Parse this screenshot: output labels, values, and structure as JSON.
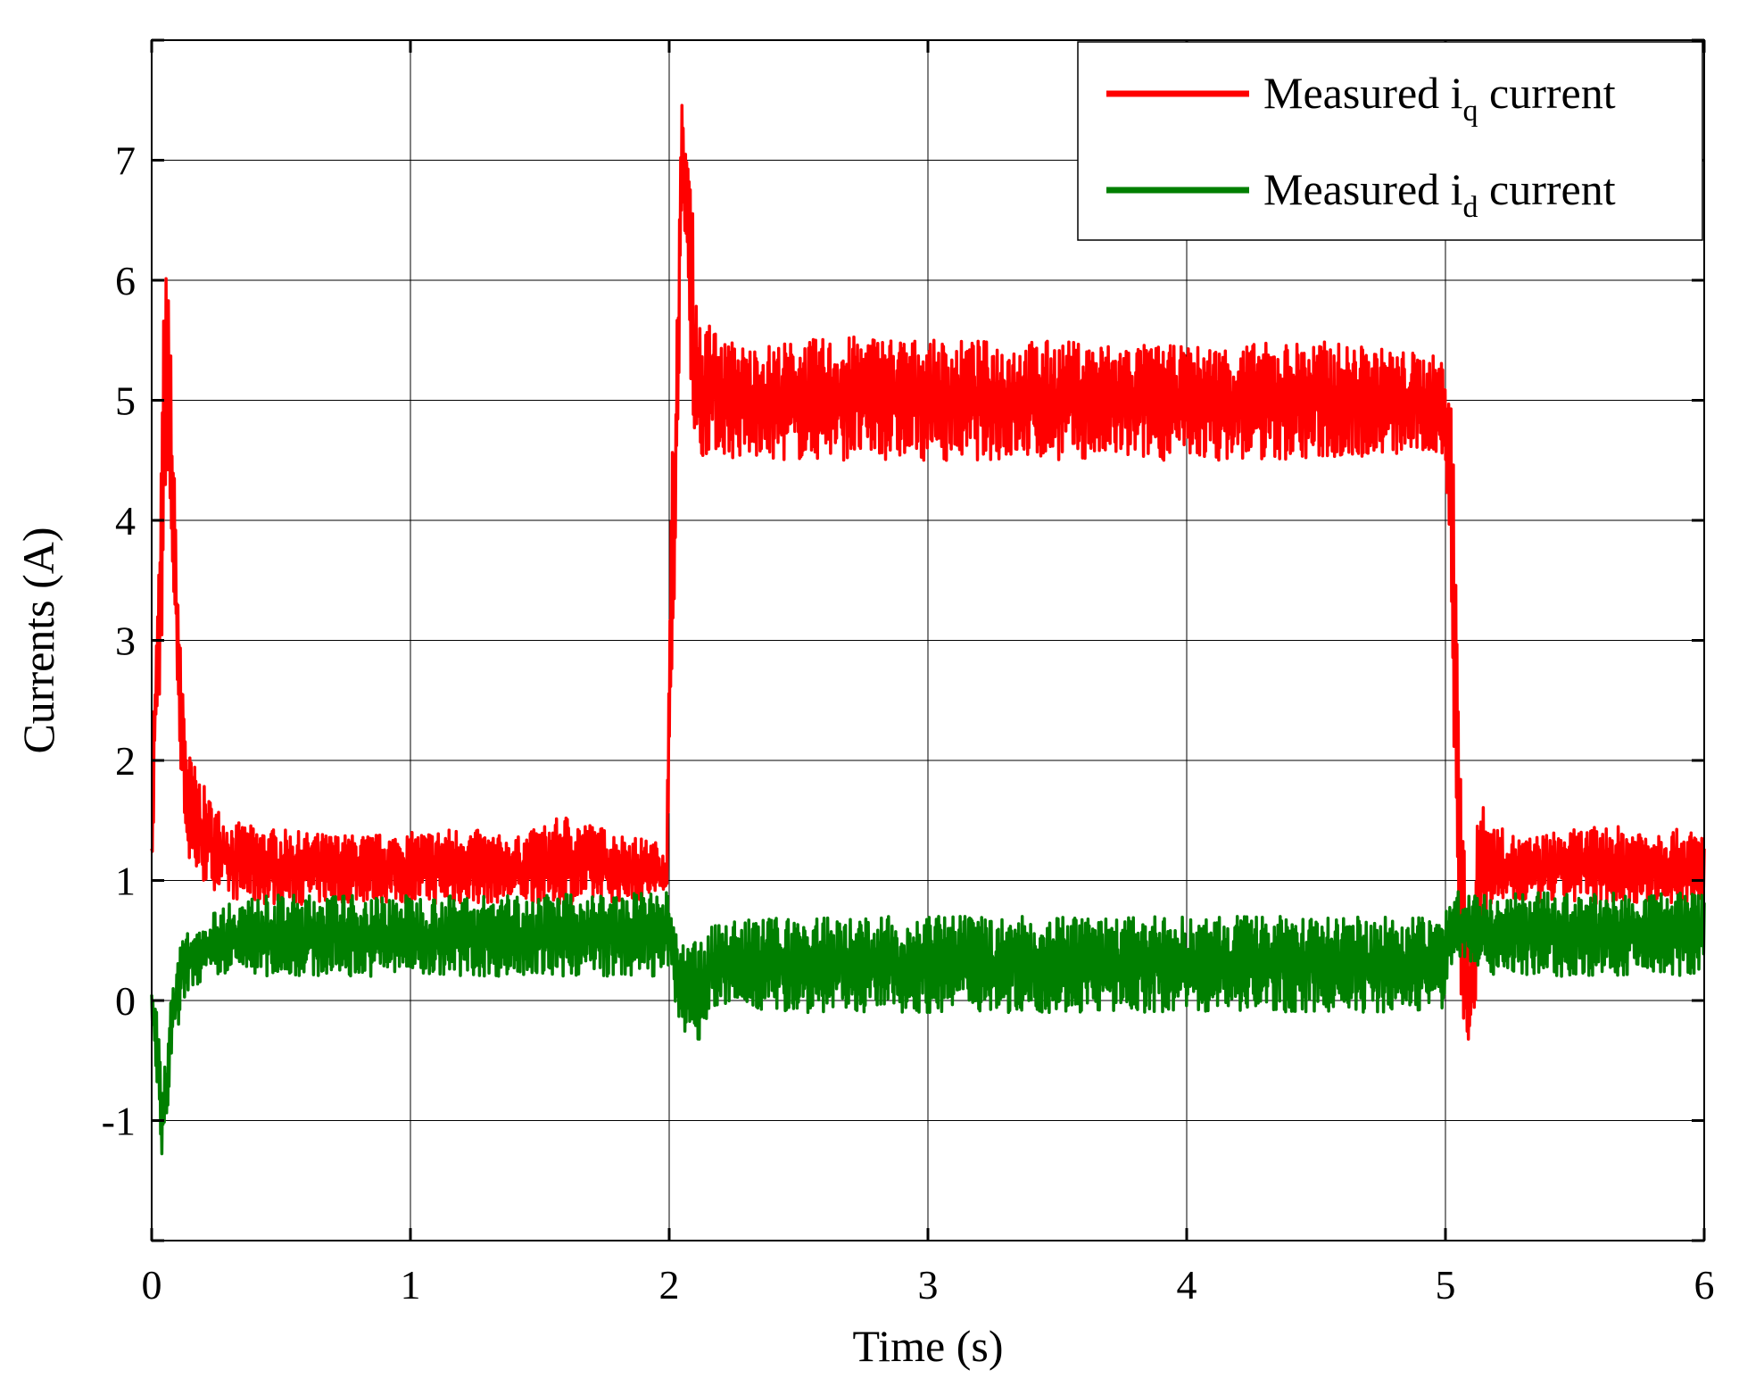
{
  "chart_data": {
    "type": "line",
    "title": "",
    "xlabel": "Time (s)",
    "ylabel": "Currents (A)",
    "xlim": [
      0,
      6
    ],
    "ylim": [
      -2,
      8
    ],
    "x_ticks": [
      0,
      1,
      2,
      3,
      4,
      5,
      6
    ],
    "y_ticks": [
      -1,
      0,
      1,
      2,
      3,
      4,
      5,
      6,
      7
    ],
    "grid": true,
    "legend_position": "top-right",
    "series": [
      {
        "name": "Measured i_q current",
        "legend_main": "Measured i",
        "legend_sub": "q",
        "legend_tail": " current",
        "color": "#ff0000",
        "outline_x": [
          0,
          0.01,
          0.03,
          0.05,
          0.07,
          0.09,
          0.11,
          0.14,
          0.18,
          0.22,
          0.3,
          0.4,
          0.6,
          0.8,
          1.0,
          1.2,
          1.4,
          1.6,
          1.8,
          1.99,
          2.01,
          2.03,
          2.05,
          2.07,
          2.09,
          2.11,
          2.13,
          2.16,
          2.2,
          2.25,
          2.3,
          2.5,
          2.8,
          3.0,
          3.5,
          4.0,
          4.5,
          4.9,
          5.0,
          5.02,
          5.04,
          5.06,
          5.08,
          5.1,
          5.12,
          5.14,
          5.17,
          5.2,
          5.25,
          5.3,
          5.4,
          5.6,
          5.8,
          6.0
        ],
        "outline_upper": [
          2.3,
          2.5,
          3.8,
          6.2,
          5.8,
          4.2,
          3.0,
          2.1,
          1.9,
          1.7,
          1.5,
          1.45,
          1.4,
          1.38,
          1.4,
          1.45,
          1.35,
          1.55,
          1.4,
          1.3,
          4.5,
          5.8,
          7.55,
          7.2,
          6.6,
          5.8,
          5.5,
          5.7,
          5.5,
          5.5,
          5.45,
          5.5,
          5.55,
          5.5,
          5.5,
          5.45,
          5.5,
          5.4,
          5.35,
          5.2,
          4.0,
          2.0,
          0.8,
          0.6,
          1.4,
          1.85,
          1.5,
          1.45,
          1.4,
          1.35,
          1.4,
          1.45,
          1.45,
          1.4
        ],
        "outline_lower": [
          0.0,
          2.0,
          2.4,
          3.7,
          4.0,
          3.0,
          2.0,
          1.1,
          1.0,
          0.95,
          0.85,
          0.8,
          0.8,
          0.82,
          0.8,
          0.8,
          0.82,
          0.8,
          0.82,
          0.85,
          2.4,
          4.4,
          6.5,
          6.0,
          4.8,
          4.3,
          4.5,
          4.6,
          4.55,
          4.5,
          4.5,
          4.5,
          4.5,
          4.5,
          4.5,
          4.5,
          4.5,
          4.55,
          4.5,
          3.5,
          1.0,
          -0.2,
          -0.35,
          -0.38,
          -0.1,
          0.5,
          0.75,
          0.8,
          0.8,
          0.8,
          0.8,
          0.8,
          0.8,
          0.8
        ]
      },
      {
        "name": "Measured i_d current",
        "legend_main": "Measured i",
        "legend_sub": "d",
        "legend_tail": " current",
        "color": "#007f00",
        "outline_x": [
          0,
          0.02,
          0.04,
          0.06,
          0.08,
          0.1,
          0.12,
          0.15,
          0.2,
          0.25,
          0.3,
          0.5,
          1.0,
          1.5,
          1.99,
          2.01,
          2.03,
          2.06,
          2.09,
          2.12,
          2.15,
          2.2,
          2.3,
          2.5,
          3.0,
          3.5,
          4.0,
          4.5,
          4.99,
          5.02,
          5.05,
          5.1,
          5.15,
          5.2,
          5.3,
          5.5,
          6.0
        ],
        "outline_upper": [
          0.1,
          -0.1,
          -0.6,
          -0.4,
          0.2,
          0.4,
          0.5,
          0.6,
          0.65,
          0.75,
          0.85,
          0.88,
          0.88,
          0.88,
          0.9,
          0.82,
          0.5,
          0.45,
          0.5,
          0.55,
          0.6,
          0.65,
          0.68,
          0.7,
          0.7,
          0.7,
          0.7,
          0.7,
          0.7,
          0.85,
          0.95,
          0.9,
          0.88,
          0.88,
          0.9,
          0.9,
          0.9
        ],
        "outline_lower": [
          -0.1,
          -0.75,
          -1.45,
          -1.0,
          -0.4,
          -0.3,
          0.0,
          0.1,
          0.15,
          0.2,
          0.2,
          0.2,
          0.2,
          0.2,
          0.2,
          0.2,
          -0.1,
          -0.3,
          -0.2,
          -0.45,
          -0.1,
          -0.05,
          -0.1,
          -0.1,
          -0.1,
          -0.1,
          -0.1,
          -0.1,
          -0.1,
          0.3,
          0.35,
          0.3,
          0.25,
          0.2,
          0.2,
          0.2,
          0.2
        ]
      }
    ]
  }
}
